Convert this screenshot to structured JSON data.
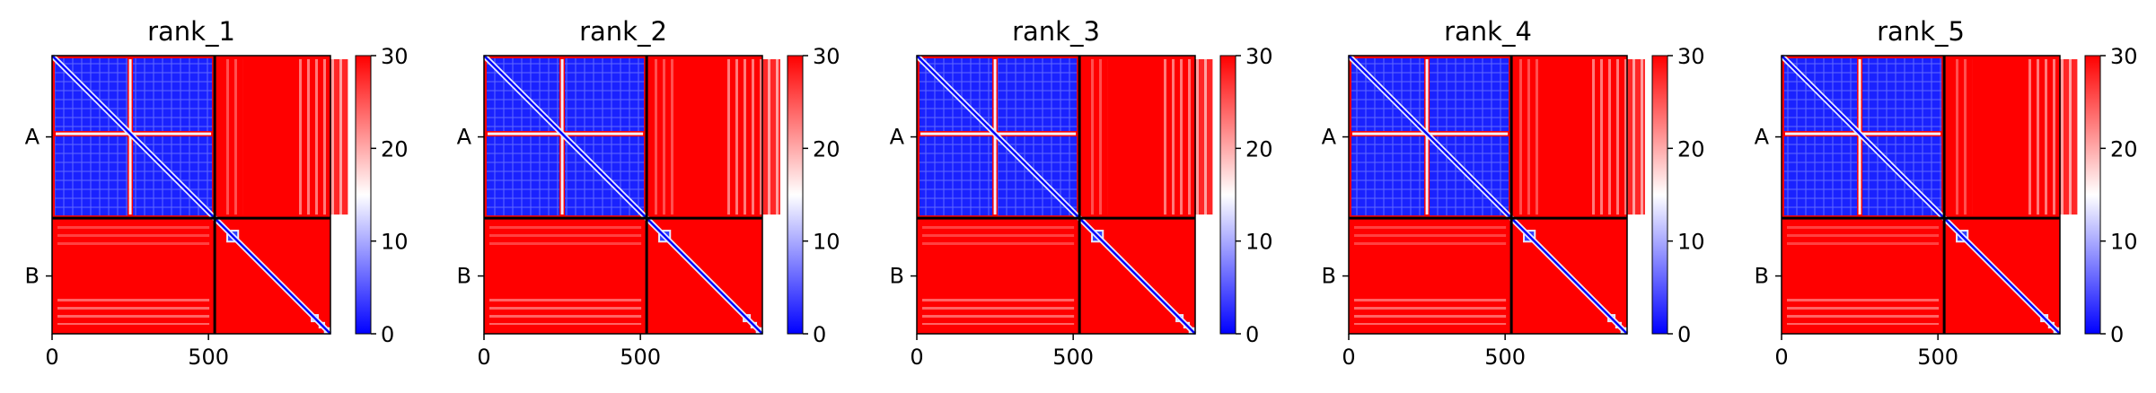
{
  "chart_data": [
    {
      "type": "heatmap",
      "title": "rank_1",
      "x_ticks": [
        0,
        500
      ],
      "x_range": [
        0,
        890
      ],
      "y_ticks": [
        "A",
        "B"
      ],
      "chain_lengths": [
        520,
        370
      ],
      "colorbar": {
        "ticks": [
          0,
          10,
          20,
          30
        ],
        "range": [
          0,
          30
        ],
        "colormap": [
          "#0000ff",
          "#ffffff",
          "#ff0000"
        ]
      },
      "xlabel": "",
      "ylabel": ""
    },
    {
      "type": "heatmap",
      "title": "rank_2",
      "x_ticks": [
        0,
        500
      ],
      "x_range": [
        0,
        890
      ],
      "y_ticks": [
        "A",
        "B"
      ],
      "chain_lengths": [
        520,
        370
      ],
      "colorbar": {
        "ticks": [
          0,
          10,
          20,
          30
        ],
        "range": [
          0,
          30
        ],
        "colormap": [
          "#0000ff",
          "#ffffff",
          "#ff0000"
        ]
      },
      "xlabel": "",
      "ylabel": ""
    },
    {
      "type": "heatmap",
      "title": "rank_3",
      "x_ticks": [
        0,
        500
      ],
      "x_range": [
        0,
        890
      ],
      "y_ticks": [
        "A",
        "B"
      ],
      "chain_lengths": [
        520,
        370
      ],
      "colorbar": {
        "ticks": [
          0,
          10,
          20,
          30
        ],
        "range": [
          0,
          30
        ],
        "colormap": [
          "#0000ff",
          "#ffffff",
          "#ff0000"
        ]
      },
      "xlabel": "",
      "ylabel": ""
    },
    {
      "type": "heatmap",
      "title": "rank_4",
      "x_ticks": [
        0,
        500
      ],
      "x_range": [
        0,
        890
      ],
      "y_ticks": [
        "A",
        "B"
      ],
      "chain_lengths": [
        520,
        370
      ],
      "colorbar": {
        "ticks": [
          0,
          10,
          20,
          30
        ],
        "range": [
          0,
          30
        ],
        "colormap": [
          "#0000ff",
          "#ffffff",
          "#ff0000"
        ]
      },
      "xlabel": "",
      "ylabel": ""
    },
    {
      "type": "heatmap",
      "title": "rank_5",
      "x_ticks": [
        0,
        500
      ],
      "x_range": [
        0,
        890
      ],
      "y_ticks": [
        "A",
        "B"
      ],
      "chain_lengths": [
        520,
        370
      ],
      "colorbar": {
        "ticks": [
          0,
          10,
          20,
          30
        ],
        "range": [
          0,
          30
        ],
        "colormap": [
          "#0000ff",
          "#ffffff",
          "#ff0000"
        ]
      },
      "xlabel": "",
      "ylabel": ""
    }
  ]
}
